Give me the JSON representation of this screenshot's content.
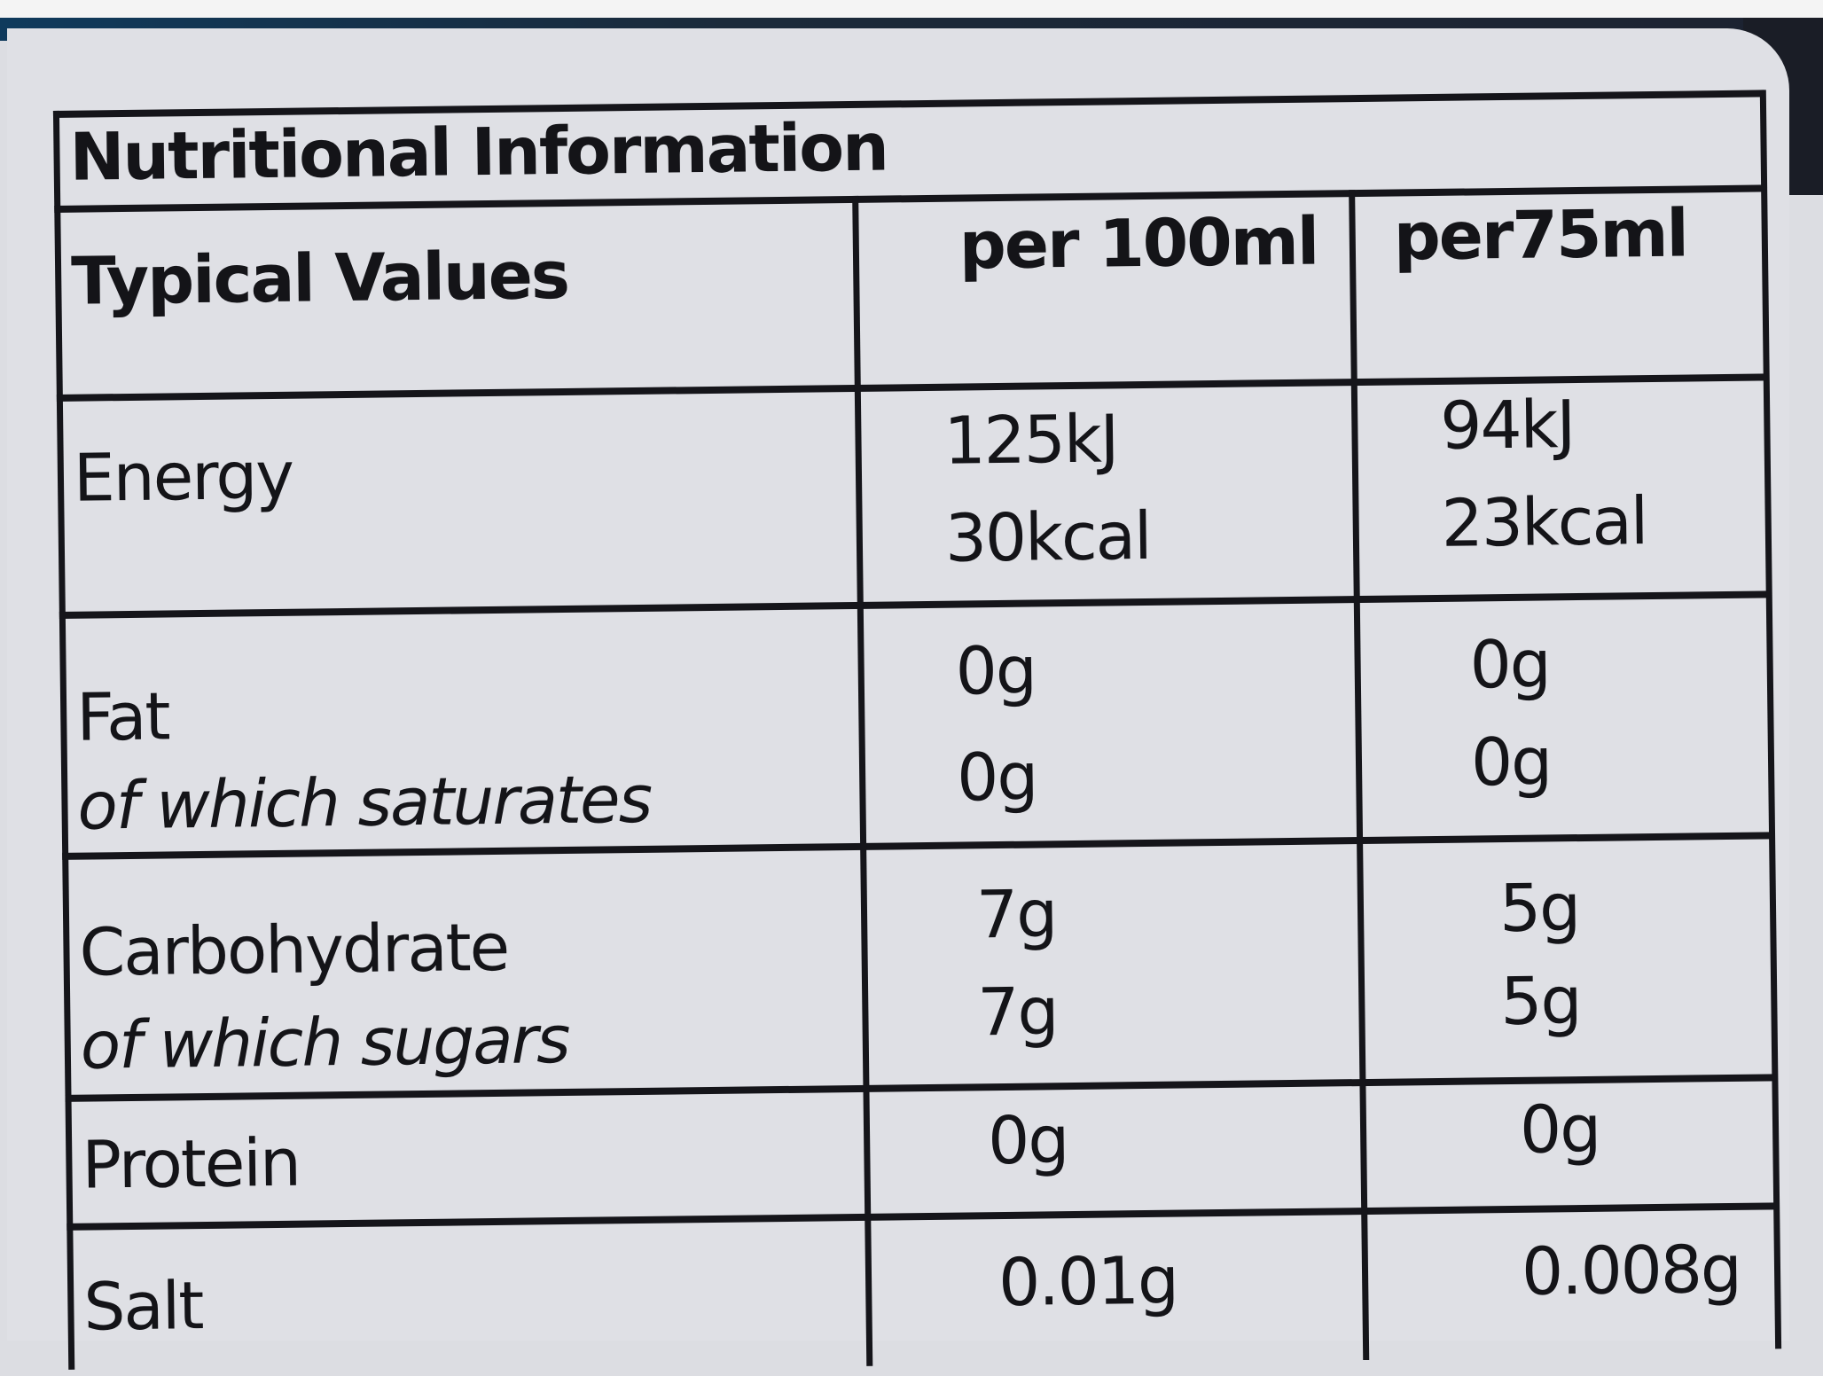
{
  "title": "Nutritional Information",
  "header": {
    "label": "Typical Values",
    "col1": "per 100ml",
    "col2": "per75ml"
  },
  "rows": [
    {
      "label": "Energy",
      "sub": "",
      "per100": [
        "125kJ",
        "30kcal"
      ],
      "per75": [
        "94kJ",
        "23kcal"
      ]
    },
    {
      "label": "Fat",
      "sub": "of which saturates",
      "per100": [
        "0g",
        "0g"
      ],
      "per75": [
        "0g",
        "0g"
      ]
    },
    {
      "label": "Carbohydrate",
      "sub": "of which sugars",
      "per100": [
        "7g",
        "7g"
      ],
      "per75": [
        "5g",
        "5g"
      ]
    },
    {
      "label": "Protein",
      "sub": "",
      "per100": [
        "0g"
      ],
      "per75": [
        "0g"
      ]
    },
    {
      "label": "Salt",
      "sub": "",
      "per100": [
        "0.01g"
      ],
      "per75": [
        "0.008g"
      ]
    }
  ]
}
